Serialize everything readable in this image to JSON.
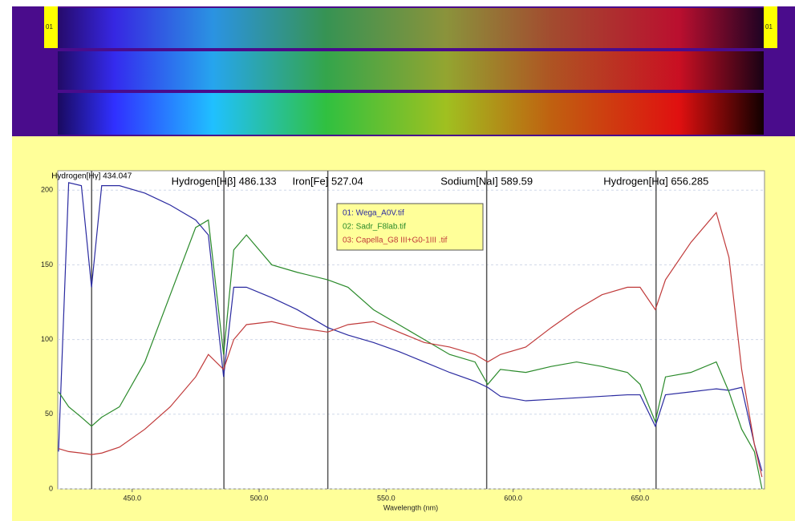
{
  "header": {
    "strip_label": "01"
  },
  "chart_data": {
    "type": "line",
    "x_label": "Wavelength (nm)",
    "xlim": [
      420.7,
      699
    ],
    "ylim": [
      0,
      213
    ],
    "xticks": [
      {
        "value": 450,
        "label": "450.0"
      },
      {
        "value": 500,
        "label": "500.0"
      },
      {
        "value": 550,
        "label": "550.0"
      },
      {
        "value": 600,
        "label": "600.0"
      },
      {
        "value": 650,
        "label": "650.0"
      }
    ],
    "yticks": [
      0,
      50,
      100,
      150,
      200
    ],
    "grid": true,
    "legend": "top-center",
    "annotations": [
      {
        "label": "Hydrogen[Hγ] 434.047",
        "x": 434.047
      },
      {
        "label": "Hydrogen[Hβ] 486.133",
        "x": 486.133
      },
      {
        "label": "Iron[Fe] 527.04",
        "x": 527.04
      },
      {
        "label": "Sodium[NaI] 589.59",
        "x": 589.59
      },
      {
        "label": "Hydrogen[Hα] 656.285",
        "x": 656.285
      }
    ],
    "x": [
      421,
      425,
      430,
      434,
      438,
      445,
      455,
      465,
      475,
      480,
      486,
      490,
      495,
      505,
      515,
      527,
      535,
      545,
      555,
      565,
      575,
      585,
      590,
      595,
      605,
      615,
      625,
      635,
      645,
      650,
      656,
      660,
      670,
      680,
      685,
      690,
      695,
      698
    ],
    "series": [
      {
        "name": "01: Wega_A0V.tif",
        "color": "#2a2aa0",
        "values": [
          25,
          205,
          203,
          135,
          203,
          203,
          198,
          190,
          180,
          170,
          75,
          135,
          135,
          128,
          120,
          108,
          103,
          98,
          92,
          85,
          78,
          72,
          68,
          62,
          59,
          60,
          61,
          62,
          63,
          63,
          42,
          63,
          65,
          67,
          66,
          68,
          30,
          12
        ]
      },
      {
        "name": "02: Sadr_F8lab.tif",
        "color": "#2a8a2a",
        "values": [
          65,
          55,
          48,
          42,
          48,
          55,
          85,
          130,
          175,
          180,
          90,
          160,
          170,
          150,
          145,
          140,
          135,
          120,
          110,
          100,
          90,
          85,
          70,
          80,
          78,
          82,
          85,
          82,
          78,
          70,
          45,
          75,
          78,
          85,
          65,
          40,
          25,
          0
        ]
      },
      {
        "name": "03: Capella_G8 III+G0-1III .tif",
        "color": "#c03a3a",
        "values": [
          27,
          25,
          24,
          23,
          24,
          28,
          40,
          55,
          75,
          90,
          80,
          100,
          110,
          112,
          108,
          105,
          110,
          112,
          105,
          98,
          95,
          90,
          85,
          90,
          95,
          108,
          120,
          130,
          135,
          135,
          120,
          140,
          165,
          185,
          155,
          80,
          30,
          8
        ]
      }
    ]
  }
}
